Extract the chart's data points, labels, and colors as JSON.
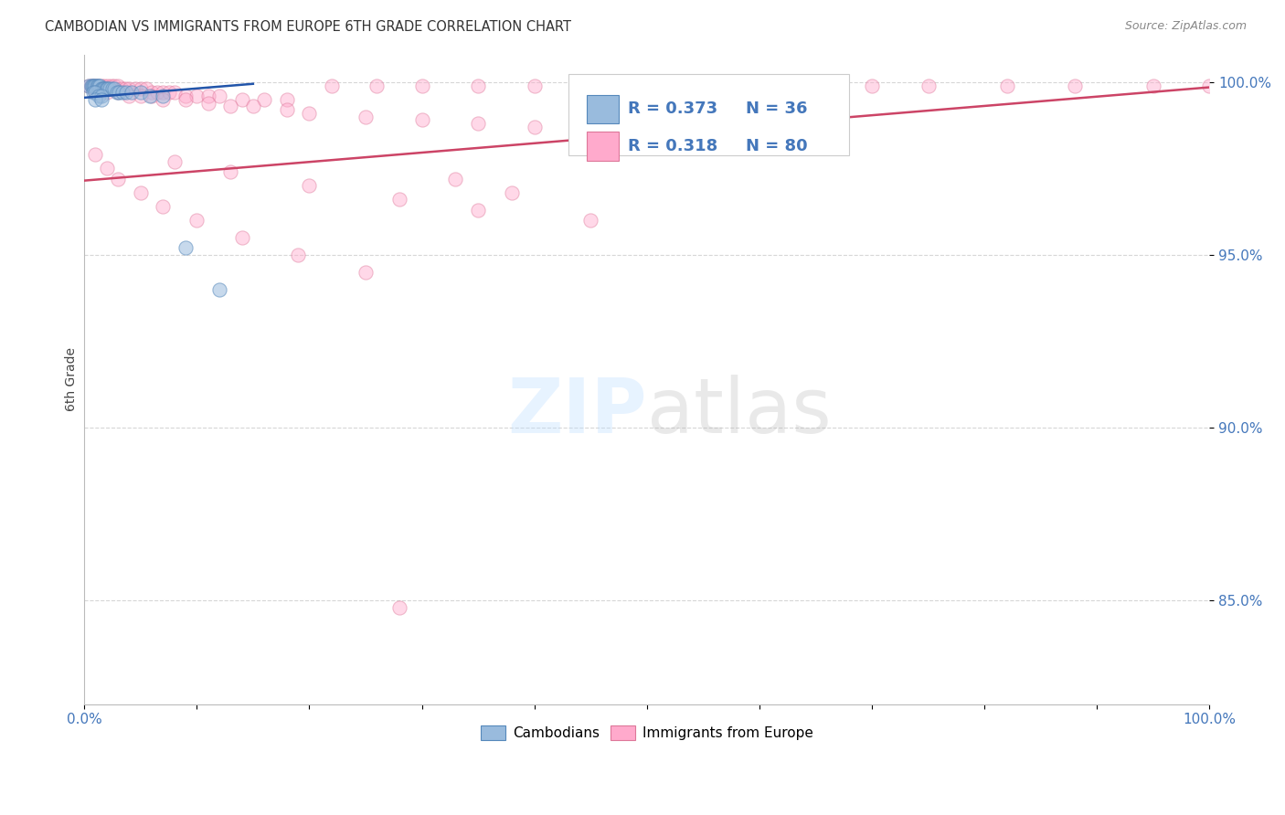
{
  "title": "CAMBODIAN VS IMMIGRANTS FROM EUROPE 6TH GRADE CORRELATION CHART",
  "source": "Source: ZipAtlas.com",
  "ylabel": "6th Grade",
  "xlim": [
    0.0,
    1.0
  ],
  "ylim": [
    0.82,
    1.008
  ],
  "yticks": [
    0.85,
    0.9,
    0.95,
    1.0
  ],
  "ytick_labels": [
    "85.0%",
    "90.0%",
    "95.0%",
    "100.0%"
  ],
  "blue_scatter_color": "#99BBDD",
  "blue_edge_color": "#5588BB",
  "pink_scatter_color": "#FFAACC",
  "pink_edge_color": "#DD7799",
  "blue_line_color": "#2255AA",
  "pink_line_color": "#CC4466",
  "marker_size": 120,
  "blue_alpha": 0.55,
  "pink_alpha": 0.45,
  "cam_x": [
    0.004,
    0.006,
    0.007,
    0.008,
    0.009,
    0.01,
    0.011,
    0.012,
    0.013,
    0.014,
    0.015,
    0.016,
    0.017,
    0.018,
    0.019,
    0.02,
    0.021,
    0.023,
    0.025,
    0.027,
    0.029,
    0.031,
    0.034,
    0.037,
    0.042,
    0.05,
    0.058,
    0.07,
    0.09,
    0.12,
    0.008,
    0.01,
    0.013,
    0.015,
    0.01,
    0.015
  ],
  "cam_y": [
    0.999,
    0.999,
    0.999,
    0.999,
    0.999,
    0.999,
    0.999,
    0.999,
    0.999,
    0.999,
    0.998,
    0.998,
    0.998,
    0.998,
    0.998,
    0.998,
    0.998,
    0.998,
    0.998,
    0.998,
    0.997,
    0.997,
    0.997,
    0.997,
    0.997,
    0.997,
    0.996,
    0.996,
    0.952,
    0.94,
    0.997,
    0.997,
    0.996,
    0.996,
    0.995,
    0.995
  ],
  "eur_x": [
    0.004,
    0.006,
    0.008,
    0.01,
    0.012,
    0.015,
    0.018,
    0.021,
    0.024,
    0.027,
    0.03,
    0.033,
    0.036,
    0.04,
    0.045,
    0.05,
    0.055,
    0.06,
    0.065,
    0.07,
    0.075,
    0.08,
    0.09,
    0.1,
    0.11,
    0.12,
    0.14,
    0.16,
    0.18,
    0.22,
    0.26,
    0.3,
    0.35,
    0.4,
    0.45,
    0.5,
    0.55,
    0.6,
    0.65,
    0.7,
    0.75,
    0.82,
    0.88,
    0.95,
    1.0,
    0.01,
    0.02,
    0.03,
    0.04,
    0.05,
    0.06,
    0.07,
    0.09,
    0.11,
    0.13,
    0.15,
    0.18,
    0.2,
    0.25,
    0.3,
    0.35,
    0.4,
    0.01,
    0.02,
    0.03,
    0.05,
    0.07,
    0.1,
    0.14,
    0.19,
    0.25,
    0.08,
    0.13,
    0.2,
    0.28,
    0.35,
    0.45,
    0.33,
    0.38,
    0.28
  ],
  "eur_y": [
    0.999,
    0.999,
    0.999,
    0.999,
    0.999,
    0.999,
    0.999,
    0.999,
    0.999,
    0.999,
    0.999,
    0.998,
    0.998,
    0.998,
    0.998,
    0.998,
    0.998,
    0.997,
    0.997,
    0.997,
    0.997,
    0.997,
    0.996,
    0.996,
    0.996,
    0.996,
    0.995,
    0.995,
    0.995,
    0.999,
    0.999,
    0.999,
    0.999,
    0.999,
    0.999,
    0.999,
    0.999,
    0.999,
    0.999,
    0.999,
    0.999,
    0.999,
    0.999,
    0.999,
    0.999,
    0.997,
    0.997,
    0.997,
    0.996,
    0.996,
    0.996,
    0.995,
    0.995,
    0.994,
    0.993,
    0.993,
    0.992,
    0.991,
    0.99,
    0.989,
    0.988,
    0.987,
    0.979,
    0.975,
    0.972,
    0.968,
    0.964,
    0.96,
    0.955,
    0.95,
    0.945,
    0.977,
    0.974,
    0.97,
    0.966,
    0.963,
    0.96,
    0.972,
    0.968,
    0.848
  ],
  "blue_trend_x": [
    0.0,
    0.15
  ],
  "blue_trend_y_start": 0.9955,
  "blue_trend_y_end": 0.9995,
  "pink_trend_x": [
    0.0,
    1.0
  ],
  "pink_trend_y_start": 0.9715,
  "pink_trend_y_end": 0.9985
}
